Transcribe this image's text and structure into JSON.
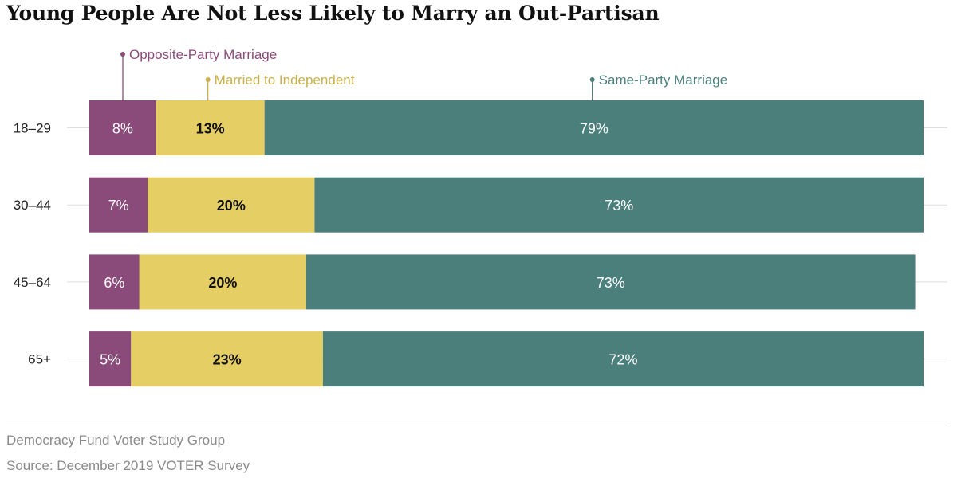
{
  "title": "Young People Are Not Less Likely to Marry an Out-Partisan",
  "colors": {
    "opposite": "#8a4a7a",
    "independent": "#e5cf65",
    "same": "#4b7f7c",
    "independent_label": "#c9b04a"
  },
  "chart_data": {
    "type": "bar",
    "orientation": "horizontal",
    "stacked": true,
    "categories": [
      "18–29",
      "30–44",
      "45–64",
      "65+"
    ],
    "series": [
      {
        "name": "Opposite-Party Marriage",
        "values": [
          8,
          7,
          6,
          5
        ],
        "labels": [
          "8%",
          "7%",
          "6%",
          "5%"
        ]
      },
      {
        "name": "Married to Independent",
        "values": [
          13,
          20,
          20,
          23
        ],
        "labels": [
          "13%",
          "20%",
          "20%",
          "23%"
        ]
      },
      {
        "name": "Same-Party Marriage",
        "values": [
          79,
          73,
          73,
          72
        ],
        "labels": [
          "79%",
          "73%",
          "73%",
          "72%"
        ]
      }
    ],
    "xlim": [
      0,
      100
    ],
    "grid": true,
    "legend": "top-annotations"
  },
  "footer": {
    "line1": "Democracy Fund Voter Study Group",
    "line2": "Source: December 2019 VOTER Survey"
  }
}
